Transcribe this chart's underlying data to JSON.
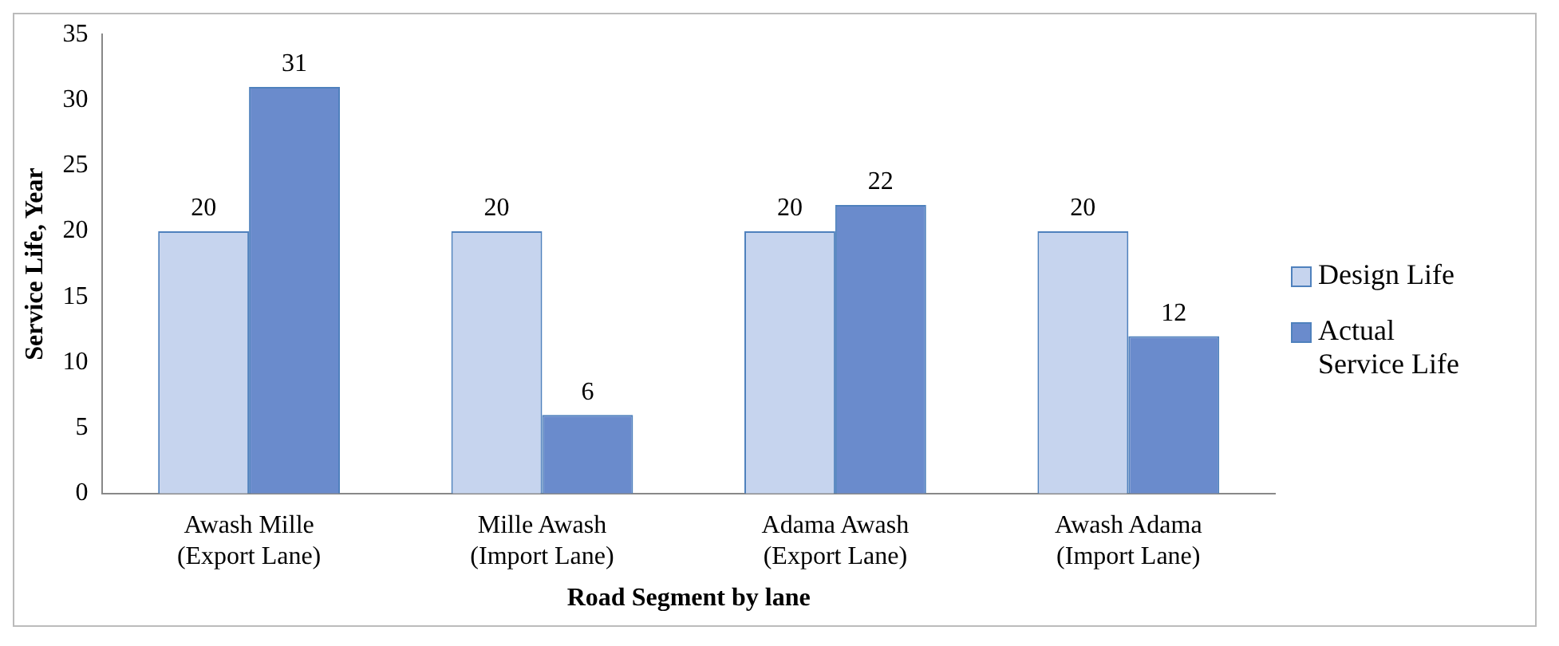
{
  "chart_data": {
    "type": "bar",
    "xlabel": "Road Segment by lane",
    "ylabel": "Service Life, Year",
    "categories": [
      "Awash Mille (Export Lane)",
      "Mille Awash (Import Lane)",
      "Adama Awash (Export Lane)",
      "Awash Adama (Import Lane)"
    ],
    "series": [
      {
        "name": "Design Life",
        "color": "#c6d4ee",
        "values": [
          20,
          20,
          20,
          20
        ]
      },
      {
        "name": "Actual Service Life",
        "color": "#6a8bcc",
        "values": [
          31,
          6,
          22,
          12
        ]
      }
    ],
    "ylim": [
      0,
      35
    ],
    "yticks": [
      0,
      5,
      10,
      15,
      20,
      25,
      30,
      35
    ],
    "grid": false,
    "legend": "right",
    "data_labels": true
  }
}
